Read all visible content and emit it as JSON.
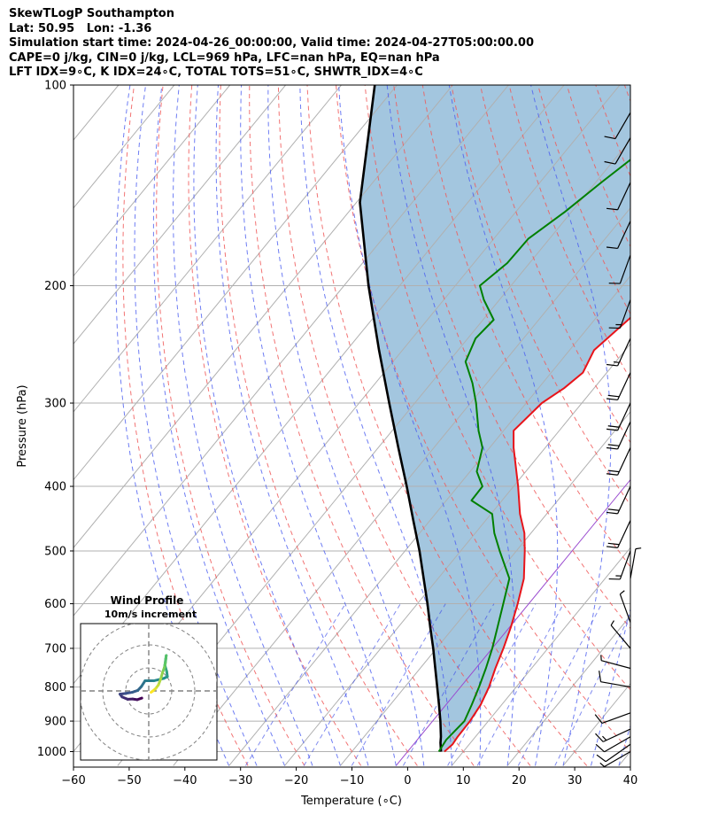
{
  "header": {
    "title": "SkewTLogP Southampton",
    "location": "Lat: 50.95   Lon: -1.36",
    "times": "Simulation start time: 2024-04-26_00:00:00, Valid time: 2024-04-27T05:00:00.00",
    "indices1": "CAPE=0 j/kg, CIN=0 j/kg, LCL=969 hPa, LFC=nan hPa, EQ=nan hPa",
    "indices2": "LFT IDX=9∘C, K IDX=24∘C, TOTAL TOTS=51∘C, SHWTR_IDX=4∘C"
  },
  "inset": {
    "title": "Wind Profile",
    "subtitle": "10m/s increment"
  },
  "chart_data": {
    "type": "line",
    "title": "SkewTLogP Southampton",
    "xlabel": "Temperature (∘C)",
    "ylabel": "Pressure (hPa)",
    "xlim": [
      -60,
      40
    ],
    "ylim": [
      1050,
      100
    ],
    "y_scale": "log",
    "x_ticks": [
      "−60",
      "−50",
      "−40",
      "−30",
      "−20",
      "−10",
      "0",
      "10",
      "20",
      "30",
      "40"
    ],
    "y_ticks": [
      "100",
      "200",
      "300",
      "400",
      "500",
      "600",
      "700",
      "800",
      "900",
      "1000"
    ],
    "grid": true,
    "colors": {
      "temperature": "#e8141a",
      "dewpoint": "#008000",
      "parcel": "#000000",
      "shade": "#a3c6df",
      "dry_adiabat": "#f05a5a",
      "moist_adiabat": "#4a5cf0",
      "mixing_ratio": "#3f4fe6",
      "isotherm_0": "#9a4bcf"
    },
    "series": [
      {
        "name": "temperature",
        "points": [
          [
            1000,
            6.6
          ],
          [
            975,
            7.0
          ],
          [
            950,
            6.8
          ],
          [
            900,
            6.7
          ],
          [
            850,
            6.2
          ],
          [
            800,
            5.1
          ],
          [
            750,
            3.5
          ],
          [
            700,
            2.0
          ],
          [
            650,
            0.2
          ],
          [
            600,
            -2.0
          ],
          [
            550,
            -4.6
          ],
          [
            500,
            -8.5
          ],
          [
            470,
            -11.2
          ],
          [
            440,
            -14.8
          ],
          [
            400,
            -19.2
          ],
          [
            350,
            -25.7
          ],
          [
            330,
            -28.2
          ],
          [
            300,
            -27.2
          ],
          [
            285,
            -25.4
          ],
          [
            270,
            -24.3
          ],
          [
            250,
            -25.6
          ],
          [
            220,
            -23.6
          ],
          [
            200,
            -21.6
          ],
          [
            180,
            -17.8
          ],
          [
            160,
            -14.9
          ],
          [
            140,
            -13.2
          ],
          [
            120,
            -11.2
          ],
          [
            110,
            -8.6
          ],
          [
            100,
            -5.5
          ]
        ]
      },
      {
        "name": "dewpoint",
        "points": [
          [
            1000,
            5.6
          ],
          [
            960,
            5.2
          ],
          [
            900,
            5.7
          ],
          [
            850,
            4.6
          ],
          [
            800,
            3.3
          ],
          [
            750,
            1.8
          ],
          [
            700,
            0.0
          ],
          [
            650,
            -2.2
          ],
          [
            600,
            -4.6
          ],
          [
            550,
            -7.2
          ],
          [
            500,
            -13.0
          ],
          [
            470,
            -16.6
          ],
          [
            440,
            -19.8
          ],
          [
            420,
            -25.5
          ],
          [
            400,
            -25.6
          ],
          [
            380,
            -28.8
          ],
          [
            350,
            -31.3
          ],
          [
            330,
            -34.5
          ],
          [
            300,
            -39.0
          ],
          [
            280,
            -42.6
          ],
          [
            260,
            -47.0
          ],
          [
            240,
            -48.6
          ],
          [
            225,
            -48.1
          ],
          [
            210,
            -52.8
          ],
          [
            200,
            -55.6
          ],
          [
            185,
            -54.0
          ],
          [
            170,
            -53.8
          ],
          [
            155,
            -51.2
          ],
          [
            140,
            -49.0
          ],
          [
            120,
            -45.3
          ],
          [
            100,
            -38.6
          ]
        ]
      },
      {
        "name": "parcel",
        "points": [
          [
            1000,
            6.0
          ],
          [
            970,
            4.6
          ],
          [
            950,
            3.8
          ],
          [
            900,
            1.4
          ],
          [
            850,
            -1.3
          ],
          [
            800,
            -4.2
          ],
          [
            750,
            -7.3
          ],
          [
            700,
            -10.6
          ],
          [
            650,
            -14.3
          ],
          [
            600,
            -18.2
          ],
          [
            550,
            -22.6
          ],
          [
            500,
            -27.4
          ],
          [
            450,
            -33.0
          ],
          [
            400,
            -39.2
          ],
          [
            350,
            -46.4
          ],
          [
            300,
            -54.6
          ],
          [
            250,
            -64.2
          ],
          [
            200,
            -75.6
          ],
          [
            150,
            -89.4
          ],
          [
            100,
            -104.0
          ]
        ]
      }
    ],
    "wind_barbs_kt": [
      {
        "p": 1000,
        "speed": 5,
        "dir": 240
      },
      {
        "p": 975,
        "speed": 12,
        "dir": 235
      },
      {
        "p": 950,
        "speed": 14,
        "dir": 240
      },
      {
        "p": 925,
        "speed": 15,
        "dir": 245
      },
      {
        "p": 875,
        "speed": 12,
        "dir": 250
      },
      {
        "p": 800,
        "speed": 10,
        "dir": 280
      },
      {
        "p": 750,
        "speed": 8,
        "dir": 285
      },
      {
        "p": 700,
        "speed": 7,
        "dir": 320
      },
      {
        "p": 640,
        "speed": 6,
        "dir": 340
      },
      {
        "p": 550,
        "speed": 5,
        "dir": 10
      },
      {
        "p": 500,
        "speed": 15,
        "dir": 200
      },
      {
        "p": 450,
        "speed": 20,
        "dir": 205
      },
      {
        "p": 400,
        "speed": 20,
        "dir": 205
      },
      {
        "p": 350,
        "speed": 20,
        "dir": 205
      },
      {
        "p": 320,
        "speed": 20,
        "dir": 205
      },
      {
        "p": 300,
        "speed": 20,
        "dir": 205
      },
      {
        "p": 270,
        "speed": 20,
        "dir": 205
      },
      {
        "p": 240,
        "speed": 15,
        "dir": 205
      },
      {
        "p": 210,
        "speed": 15,
        "dir": 200
      },
      {
        "p": 180,
        "speed": 10,
        "dir": 200
      },
      {
        "p": 160,
        "speed": 10,
        "dir": 205
      },
      {
        "p": 140,
        "speed": 10,
        "dir": 205
      },
      {
        "p": 120,
        "speed": 10,
        "dir": 210
      },
      {
        "p": 110,
        "speed": 10,
        "dir": 210
      }
    ],
    "hodograph": {
      "ring_step_ms": 10,
      "points": [
        [
          1000,
          -3.0,
          -3.1
        ],
        [
          975,
          -5.0,
          -3.8
        ],
        [
          950,
          -7.0,
          -3.5
        ],
        [
          925,
          -9.2,
          -3.6
        ],
        [
          900,
          -11.6,
          -2.6
        ],
        [
          875,
          -12.5,
          -1.4
        ],
        [
          850,
          -10.2,
          -1.1
        ],
        [
          825,
          -7.2,
          -0.6
        ],
        [
          800,
          -4.8,
          0.2
        ],
        [
          775,
          -3.2,
          1.9
        ],
        [
          750,
          -1.6,
          4.4
        ],
        [
          725,
          2.2,
          4.4
        ],
        [
          700,
          6.4,
          5.4
        ],
        [
          680,
          8.1,
          6.2
        ],
        [
          660,
          7.8,
          8.5
        ],
        [
          640,
          7.0,
          11.2
        ],
        [
          620,
          7.4,
          14.0
        ],
        [
          600,
          7.6,
          15.4
        ],
        [
          580,
          7.2,
          12.0
        ],
        [
          560,
          6.8,
          10.2
        ],
        [
          540,
          6.0,
          8.0
        ],
        [
          520,
          5.2,
          5.2
        ],
        [
          500,
          4.2,
          2.6
        ],
        [
          480,
          3.0,
          1.0
        ],
        [
          460,
          1.8,
          0.0
        ],
        [
          450,
          1.0,
          -0.6
        ]
      ]
    }
  }
}
